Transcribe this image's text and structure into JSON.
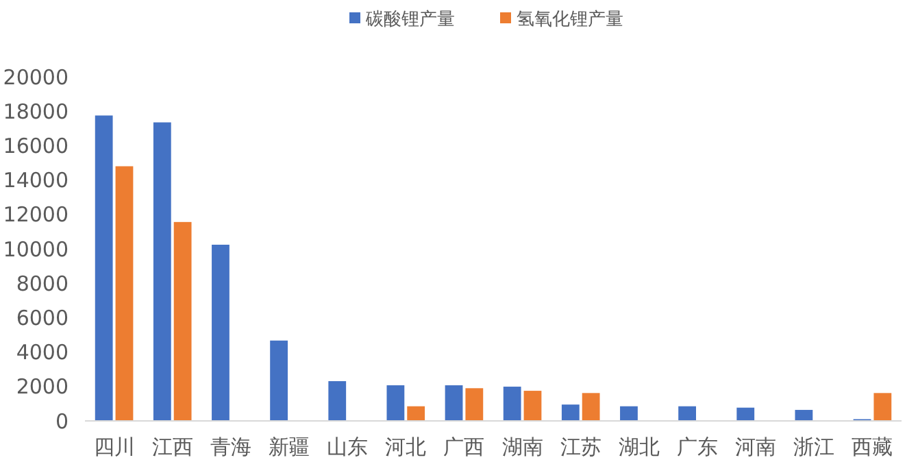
{
  "chart_data": {
    "type": "bar",
    "categories": [
      "四川",
      "江西",
      "青海",
      "新疆",
      "山东",
      "河北",
      "广西",
      "湖南",
      "江苏",
      "湖北",
      "广东",
      "河南",
      "浙江",
      "西藏"
    ],
    "series": [
      {
        "name": "碳酸锂产量",
        "color": "#4472c4",
        "values": [
          17750,
          17350,
          10240,
          4670,
          2310,
          2070,
          2070,
          1990,
          950,
          850,
          850,
          770,
          640,
          100
        ]
      },
      {
        "name": "氢氧化锂产量",
        "color": "#ed7d31",
        "values": [
          14800,
          11560,
          null,
          null,
          null,
          850,
          1900,
          1750,
          1620,
          null,
          null,
          null,
          null,
          1620
        ]
      }
    ],
    "ylim": [
      0,
      20000
    ],
    "yticks": [
      0,
      2000,
      4000,
      6000,
      8000,
      10000,
      12000,
      14000,
      16000,
      18000,
      20000
    ],
    "grid": false,
    "legend": "top"
  }
}
